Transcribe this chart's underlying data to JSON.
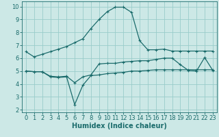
{
  "bg_color": "#cce8e6",
  "grid_color": "#99ccca",
  "line_color": "#1a6b6b",
  "line_width": 0.9,
  "marker": "+",
  "marker_size": 3.5,
  "marker_edge_width": 0.8,
  "xlabel": "Humidex (Indice chaleur)",
  "xlabel_fontsize": 7,
  "tick_fontsize": 6,
  "ylim": [
    1.8,
    10.4
  ],
  "xlim": [
    -0.5,
    23.5
  ],
  "yticks": [
    2,
    3,
    4,
    5,
    6,
    7,
    8,
    9,
    10
  ],
  "xticks": [
    0,
    1,
    2,
    3,
    4,
    5,
    6,
    7,
    8,
    9,
    10,
    11,
    12,
    13,
    14,
    15,
    16,
    17,
    18,
    19,
    20,
    21,
    22,
    23
  ],
  "line1_x": [
    0,
    1,
    2,
    3,
    4,
    5,
    6,
    7,
    8,
    9,
    10,
    11,
    12,
    13,
    14,
    15,
    16,
    17,
    18,
    19,
    20,
    21,
    22,
    23
  ],
  "line1_y": [
    6.5,
    6.1,
    6.3,
    6.5,
    6.7,
    6.9,
    7.2,
    7.5,
    8.3,
    9.0,
    9.6,
    9.95,
    9.95,
    9.55,
    7.35,
    6.65,
    6.65,
    6.7,
    6.55,
    6.55,
    6.55,
    6.55,
    6.55,
    6.55
  ],
  "line2_x": [
    0,
    1,
    2,
    3,
    4,
    5,
    6,
    7,
    8,
    9,
    10,
    11,
    12,
    13,
    14,
    15,
    16,
    17,
    18,
    19,
    20,
    21,
    22,
    23
  ],
  "line2_y": [
    5.0,
    4.95,
    4.95,
    4.6,
    4.55,
    4.6,
    4.1,
    4.55,
    4.7,
    5.55,
    5.6,
    5.6,
    5.7,
    5.75,
    5.8,
    5.8,
    5.9,
    6.0,
    6.0,
    5.5,
    5.05,
    5.0,
    6.05,
    5.05
  ],
  "line3_x": [
    0,
    1,
    2,
    3,
    4,
    5,
    6,
    7,
    8,
    9,
    10,
    11,
    12,
    13,
    14,
    15,
    16,
    17,
    18,
    19,
    20,
    21,
    22,
    23
  ],
  "line3_y": [
    5.0,
    4.95,
    4.95,
    4.55,
    4.5,
    4.55,
    2.4,
    3.9,
    4.65,
    4.7,
    4.8,
    4.85,
    4.9,
    5.0,
    5.0,
    5.05,
    5.1,
    5.1,
    5.1,
    5.1,
    5.1,
    5.1,
    5.1,
    5.1
  ]
}
